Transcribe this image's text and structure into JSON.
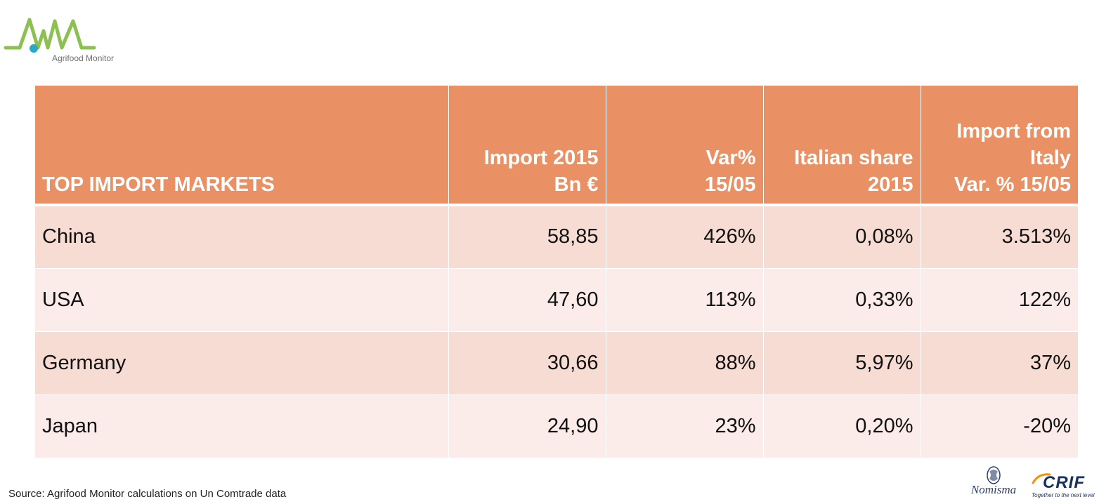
{
  "logo": {
    "text": "Agrifood Monitor",
    "colors": {
      "green": "#8cc152",
      "teal": "#2aa7c9"
    }
  },
  "table": {
    "headers": {
      "market": [
        "TOP IMPORT MARKETS"
      ],
      "import": [
        "Import 2015",
        "Bn €"
      ],
      "var": [
        "Var%",
        "15/05"
      ],
      "share": [
        "Italian share",
        "2015"
      ],
      "italy": [
        "Import from",
        "Italy",
        "Var. % 15/05"
      ]
    },
    "rows": [
      {
        "market": "China",
        "import": "58,85",
        "var": "426%",
        "share": "0,08%",
        "italy": "3.513%"
      },
      {
        "market": "USA",
        "import": "47,60",
        "var": "113%",
        "share": "0,33%",
        "italy": "122%"
      },
      {
        "market": "Germany",
        "import": "30,66",
        "var": "88%",
        "share": "5,97%",
        "italy": "37%"
      },
      {
        "market": "Japan",
        "import": "24,90",
        "var": "23%",
        "share": "0,20%",
        "italy": "-20%"
      }
    ],
    "colors": {
      "header": "#e99165",
      "row_odd": "#f6dcd3",
      "row_even": "#fbecea"
    }
  },
  "footer": {
    "source": "Source:  Agrifood Monitor calculations  on Un Comtrade data",
    "nomisma": "Nomisma",
    "crif": "CRIF",
    "crif_tagline": "Together to the next level"
  }
}
